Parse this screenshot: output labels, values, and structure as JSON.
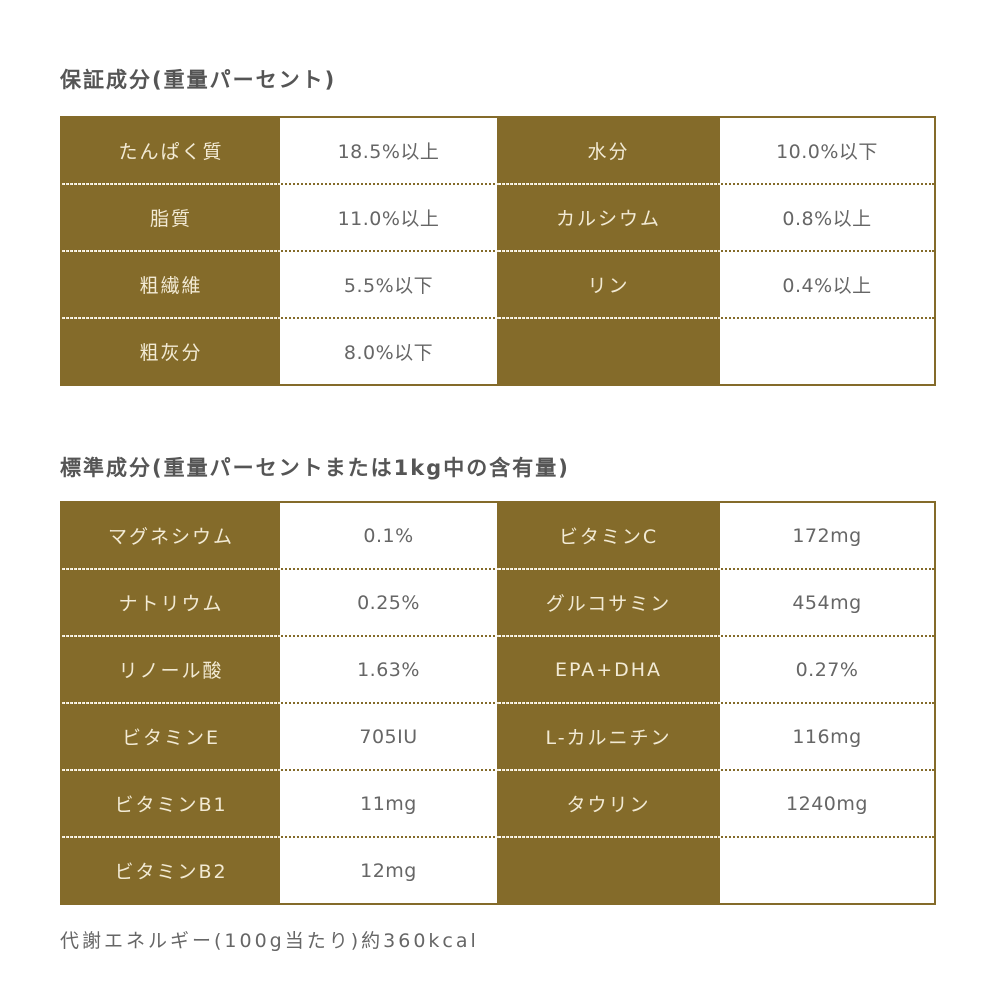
{
  "section1": {
    "title": "保証成分(重量パーセント)",
    "rows": [
      [
        "たんぱく質",
        "18.5%以上",
        "水分",
        "10.0%以下"
      ],
      [
        "脂質",
        "11.0%以上",
        "カルシウム",
        "0.8%以上"
      ],
      [
        "粗繊維",
        "5.5%以下",
        "リン",
        "0.4%以上"
      ],
      [
        "粗灰分",
        "8.0%以下",
        "",
        ""
      ]
    ]
  },
  "section2": {
    "title": "標準成分(重量パーセントまたは1kg中の含有量)",
    "rows": [
      [
        "マグネシウム",
        "0.1%",
        "ビタミンC",
        "172mg"
      ],
      [
        "ナトリウム",
        "0.25%",
        "グルコサミン",
        "454mg"
      ],
      [
        "リノール酸",
        "1.63%",
        "EPA+DHA",
        "0.27%"
      ],
      [
        "ビタミンE",
        "705IU",
        "L-カルニチン",
        "116mg"
      ],
      [
        "ビタミンB1",
        "11mg",
        "タウリン",
        "1240mg"
      ],
      [
        "ビタミンB2",
        "12mg",
        "",
        ""
      ]
    ]
  },
  "footer": "代謝エネルギー(100g当たり)約360kcal",
  "colors": {
    "label_bg": "#846b2a",
    "label_text": "#f2ead4",
    "value_text": "#666666"
  }
}
